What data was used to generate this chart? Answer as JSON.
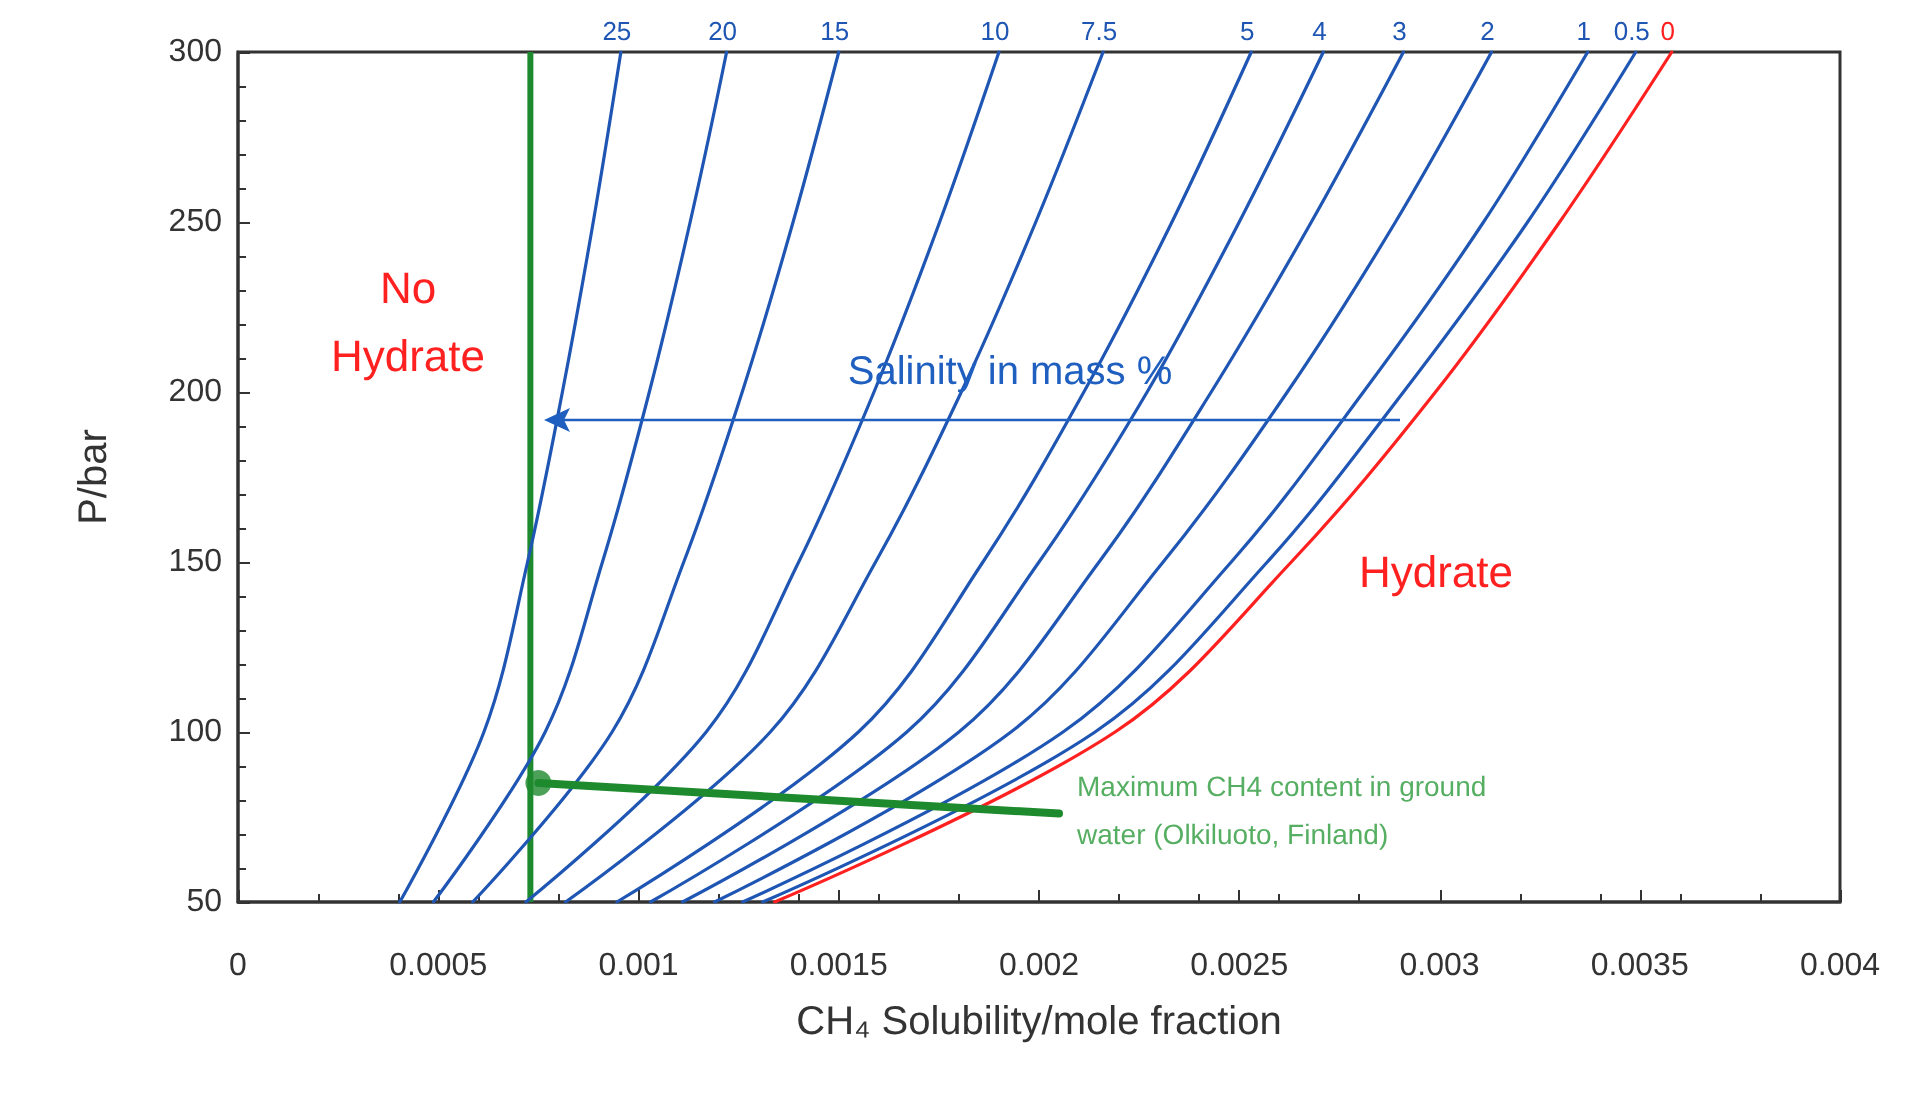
{
  "chart_data": {
    "type": "line",
    "xlabel": "CH₄ Solubility/mole fraction",
    "ylabel": "P/bar",
    "xlim": [
      0,
      0.004
    ],
    "xticks": [
      0,
      0.0005,
      0.001,
      0.0015,
      0.002,
      0.0025,
      0.003,
      0.0035,
      0.004
    ],
    "ylim": [
      50,
      300
    ],
    "yticks": [
      50,
      100,
      150,
      200,
      250,
      300
    ],
    "grid": false,
    "legend": false,
    "marker": "none",
    "line_style": "solid",
    "series": [
      {
        "name": "25",
        "color": "#1f56b4",
        "x": [
          0.000404,
          0.000614,
          0.000723,
          0.00081,
          0.000887,
          0.000956
        ],
        "values": [
          50,
          100,
          150,
          200,
          250,
          300
        ]
      },
      {
        "name": "20",
        "color": "#1f56b4",
        "x": [
          0.000488,
          0.000767,
          0.00091,
          0.001027,
          0.001129,
          0.00122
        ],
        "values": [
          50,
          100,
          150,
          200,
          250,
          300
        ]
      },
      {
        "name": "15",
        "color": "#1f56b4",
        "x": [
          0.000586,
          0.000934,
          0.001113,
          0.001259,
          0.001386,
          0.0015
        ],
        "values": [
          50,
          100,
          150,
          200,
          250,
          300
        ]
      },
      {
        "name": "10",
        "color": "#1f56b4",
        "x": [
          0.000719,
          0.001169,
          0.0014,
          0.001588,
          0.001752,
          0.0019
        ],
        "values": [
          50,
          100,
          150,
          200,
          250,
          300
        ]
      },
      {
        "name": "7.5",
        "color": "#1f56b4",
        "x": [
          0.000818,
          0.001329,
          0.001592,
          0.001806,
          0.001992,
          0.00216
        ],
        "values": [
          50,
          100,
          150,
          200,
          250,
          300
        ]
      },
      {
        "name": "5",
        "color": "#1f56b4",
        "x": [
          0.000946,
          0.001549,
          0.00186,
          0.002112,
          0.002332,
          0.00253
        ],
        "values": [
          50,
          100,
          150,
          200,
          250,
          300
        ]
      },
      {
        "name": "4",
        "color": "#1f56b4",
        "x": [
          0.00103,
          0.00167,
          0.002,
          0.00227,
          0.0025,
          0.00271
        ],
        "values": [
          50,
          100,
          150,
          200,
          250,
          300
        ]
      },
      {
        "name": "3",
        "color": "#1f56b4",
        "x": [
          0.00111,
          0.0018,
          0.00215,
          0.00243,
          0.00268,
          0.00291
        ],
        "values": [
          50,
          100,
          150,
          200,
          250,
          300
        ]
      },
      {
        "name": "2",
        "color": "#1f56b4",
        "x": [
          0.00119,
          0.00193,
          0.00231,
          0.00262,
          0.00289,
          0.00313
        ],
        "values": [
          50,
          100,
          150,
          200,
          250,
          300
        ]
      },
      {
        "name": "1",
        "color": "#1f56b4",
        "x": [
          0.00126,
          0.00206,
          0.00248,
          0.00281,
          0.00311,
          0.00337
        ],
        "values": [
          50,
          100,
          150,
          200,
          250,
          300
        ]
      },
      {
        "name": "0.5",
        "color": "#1f56b4",
        "x": [
          0.00131,
          0.00214,
          0.00257,
          0.00291,
          0.00322,
          0.00349
        ],
        "values": [
          50,
          100,
          150,
          200,
          250,
          300
        ]
      },
      {
        "name": "0",
        "color": "#ff2020",
        "x": [
          0.00134,
          0.00219,
          0.00263,
          0.00299,
          0.0033,
          0.00358
        ],
        "values": [
          50,
          100,
          150,
          200,
          250,
          300
        ]
      },
      {
        "color": "#1e8a2e",
        "x": [
          0.00075,
          0.00205
        ],
        "values": [
          85,
          76
        ],
        "marker": "none"
      },
      {
        "type": "scatter",
        "color": "#1e8a2e",
        "x": [
          0.00075
        ],
        "values": [
          85
        ],
        "marker": "circle"
      }
    ],
    "ref_lines": [
      {
        "axis": "x",
        "value": 0.00073,
        "color": "#1e8a2e"
      }
    ],
    "annotations": [
      "No\nHydrate",
      "Salinity in mass %",
      "Hydrate",
      {
        "text": "Maximum CH4 content in ground\nwater (Olkiluoto, Finland)",
        "x": 0.00207,
        "y": 77
      }
    ]
  }
}
